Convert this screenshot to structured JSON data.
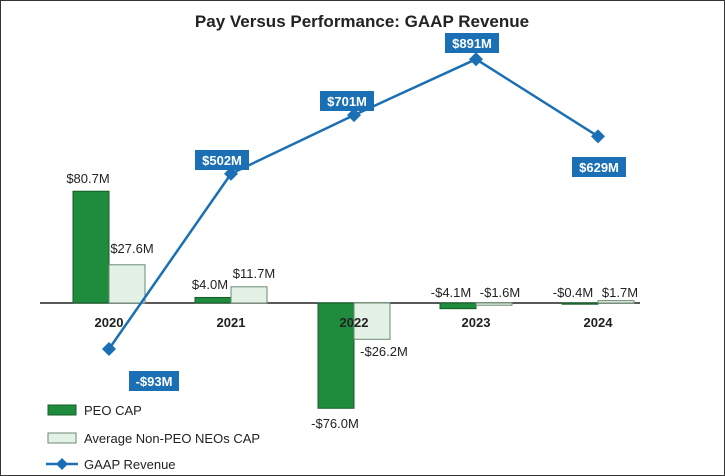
{
  "chart_data": {
    "type": "bar",
    "title": "Pay Versus Performance: GAAP Revenue",
    "categories": [
      "2020",
      "2021",
      "2022",
      "2023",
      "2024"
    ],
    "series": [
      {
        "name": "PEO CAP",
        "kind": "bar",
        "color": "#1e8c3c",
        "values": [
          80.7,
          4.0,
          -76.0,
          -4.1,
          -0.4
        ],
        "labels": [
          "$80.7M",
          "$4.0M",
          "-$76.0M",
          "-$4.1M",
          "-$0.4M"
        ]
      },
      {
        "name": "Average Non-PEO NEOs CAP",
        "kind": "bar",
        "color": "#e4f1e6",
        "values": [
          27.6,
          11.7,
          -26.2,
          -1.6,
          1.7
        ],
        "labels": [
          "$27.6M",
          "$11.7M",
          "-$26.2M",
          "-$1.6M",
          "$1.7M"
        ]
      },
      {
        "name": "GAAP Revenue",
        "kind": "line",
        "color": "#1a6fb5",
        "values": [
          -93,
          502,
          701,
          891,
          629
        ],
        "labels": [
          "-$93M",
          "$502M",
          "$701M",
          "$891M",
          "$629M"
        ]
      }
    ],
    "legend_position": "bottom-left"
  }
}
